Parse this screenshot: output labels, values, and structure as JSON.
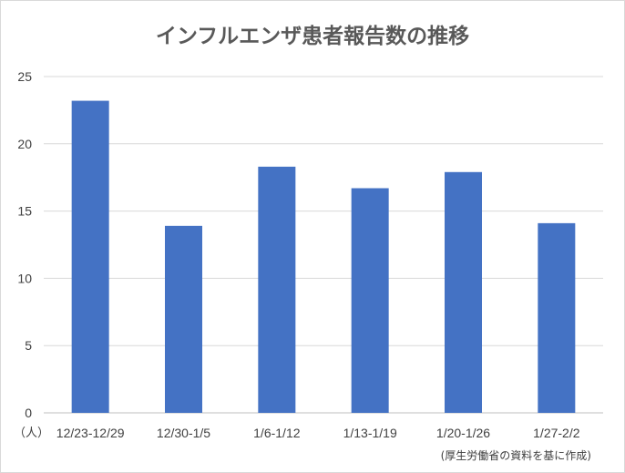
{
  "chart_data": {
    "type": "bar",
    "title": "インフルエンザ患者報告数の推移",
    "categories": [
      "12/23-12/29",
      "12/30-1/5",
      "1/6-1/12",
      "1/13-1/19",
      "1/20-1/26",
      "1/27-2/2"
    ],
    "values": [
      23.2,
      13.9,
      18.3,
      16.7,
      17.9,
      14.1
    ],
    "ylim": [
      0,
      25
    ],
    "yticks": [
      "0",
      "5",
      "10",
      "15",
      "20",
      "25"
    ],
    "unit_label": "（人）",
    "source": "(厚生労働省の資料を基に作成)",
    "grid": true,
    "colors": {
      "bar": "#4472c4",
      "grid": "#d9d9d9"
    }
  }
}
